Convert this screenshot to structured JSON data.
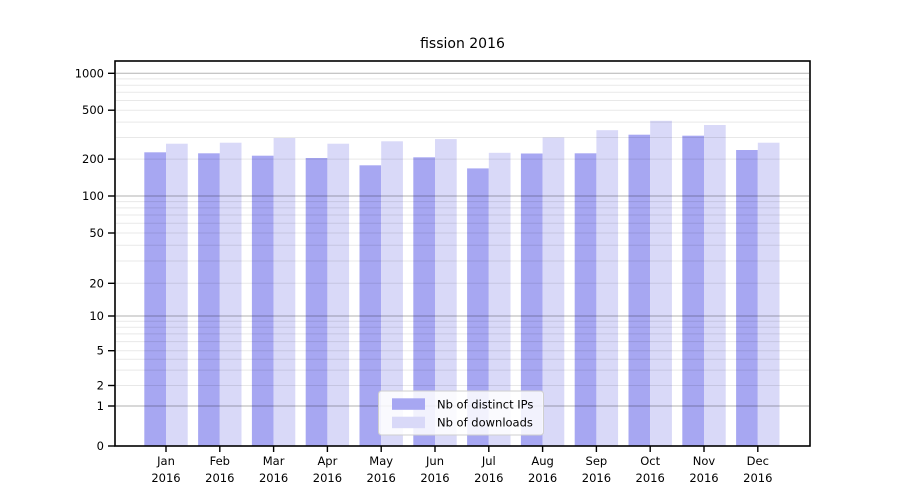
{
  "figure": {
    "background": "#ffffff"
  },
  "chart_data": {
    "type": "bar",
    "title": "fission 2016",
    "x": {
      "months": [
        "Jan",
        "Feb",
        "Mar",
        "Apr",
        "May",
        "Jun",
        "Jul",
        "Aug",
        "Sep",
        "Oct",
        "Nov",
        "Dec"
      ],
      "year": "2016"
    },
    "series": [
      {
        "name": "Nb of distinct IPs",
        "color": "#a7a7f2",
        "values": [
          227,
          223,
          213,
          204,
          178,
          207,
          168,
          222,
          223,
          316,
          310,
          237
        ]
      },
      {
        "name": "Nb of downloads",
        "color": "#d9d9f8",
        "values": [
          267,
          272,
          297,
          267,
          279,
          291,
          225,
          300,
          344,
          410,
          379,
          272
        ]
      }
    ],
    "y_axis": {
      "scale": "symlog",
      "tick_values": [
        0,
        1,
        2,
        5,
        10,
        20,
        50,
        100,
        200,
        500,
        1000
      ],
      "major_gridline_values": [
        1,
        10,
        100,
        1000
      ],
      "top_value": 1000
    },
    "grid": {
      "on": true,
      "major_color": "rgba(0,0,0,0.30)",
      "minor_color": "rgba(0,0,0,0.09)"
    },
    "legend": {
      "position": "lower-center"
    },
    "axes_color": "#000000"
  }
}
